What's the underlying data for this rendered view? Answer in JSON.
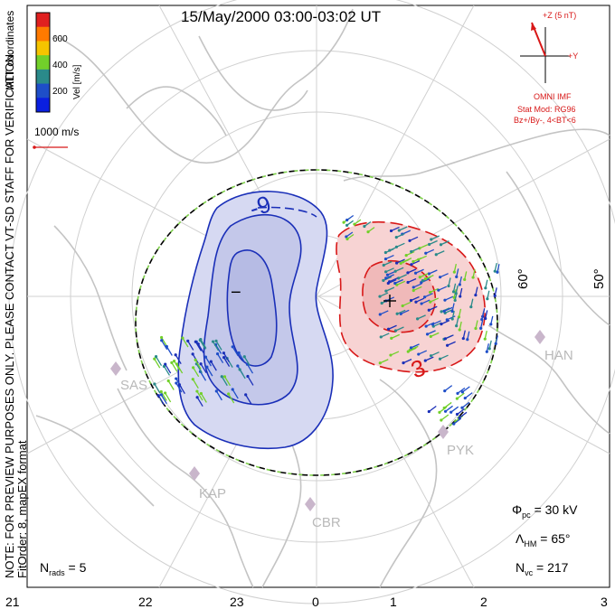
{
  "title": "15/May/2000 03:00-03:02 UT",
  "side_text": {
    "coordinates": "MLT coordinates",
    "note": "NOTE: FOR PREVIEW PURPOSES ONLY. PLEASE CONTACT VT-SD STAFF FOR VERIFICATION.",
    "format": "FitOrder: 8, mapEX format"
  },
  "colorbar": {
    "label": "Vel [m/s]",
    "ticks": [
      "600",
      "400",
      "200"
    ],
    "colors": [
      "#e02020",
      "#ff7a00",
      "#f5c400",
      "#72d02a",
      "#2a8a8a",
      "#1e4ec8",
      "#0a1fe0"
    ]
  },
  "scale_vector": {
    "label": "1000 m/s"
  },
  "imf": {
    "z_label": "+Z (5 nT)",
    "y_label": "+Y",
    "source": "OMNI IMF",
    "model_line1": "Stat Mod: RG96",
    "model_line2": "Bz+/By-, 4<BT<6"
  },
  "contours": {
    "dusk_label": "-9",
    "dawn_label": "3",
    "dusk_symbol": "−",
    "dawn_symbol": "+"
  },
  "latitude_labels": [
    "60°",
    "50°"
  ],
  "mlt_labels": [
    "21",
    "22",
    "23",
    "0",
    "1",
    "2",
    "3"
  ],
  "stations": [
    "SAS",
    "KAP",
    "CBR",
    "HAN",
    "PYK"
  ],
  "stats": {
    "phi_pc_sym": "Φ",
    "phi_pc_sub": "pc",
    "phi_pc_val": " = 30 kV",
    "lambda_sym": "Λ",
    "lambda_sub": "HM",
    "lambda_val": " = 65°",
    "nvc_sym": "N",
    "nvc_sub": "vc",
    "nvc_val": " = 217",
    "nrads_sym": "N",
    "nrads_sub": "rads",
    "nrads_val": " = 5"
  },
  "colors": {
    "dusk_line": "#1a2fb8",
    "dusk_fill": "#d6d9f2",
    "dawn_line": "#d81818",
    "dawn_fill": "#f7d3d3",
    "coast": "#c4c4c4",
    "grid": "#d0d0d0"
  }
}
